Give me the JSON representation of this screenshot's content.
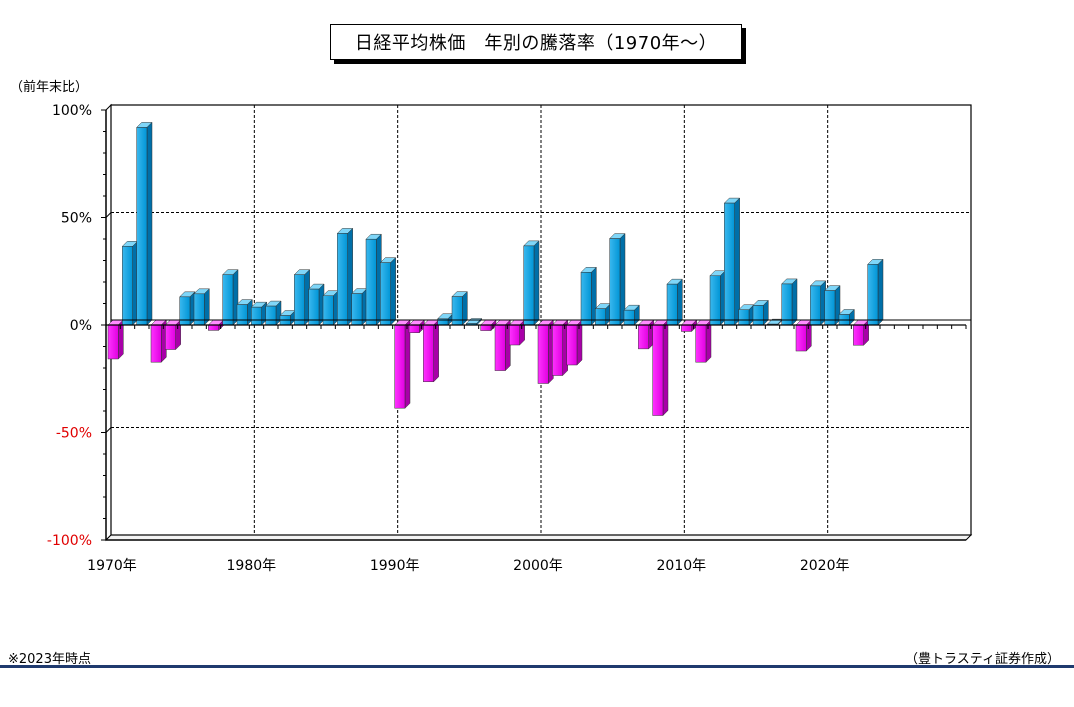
{
  "title": "日経平均株価　年別の騰落率（1970年～）",
  "unit_label": "（前年末比）",
  "footnote": "※2023年時点",
  "credit": "（豊トラスティ証券作成）",
  "colors": {
    "positive": "#00a8e6",
    "negative": "#ff00ff",
    "negative_tick": "#e00000",
    "rule": "#1f3a6e"
  },
  "chart_data": {
    "type": "bar",
    "x_tick_labels": [
      "1970年",
      "1980年",
      "1990年",
      "2000年",
      "2010年",
      "2020年"
    ],
    "y_tick_labels": [
      "100%",
      "50%",
      "0%",
      "-50%",
      "-100%"
    ],
    "ylim": [
      -100,
      100
    ],
    "xlim": [
      1970,
      2029
    ],
    "grid": true,
    "categories": [
      1970,
      1971,
      1972,
      1973,
      1974,
      1975,
      1976,
      1977,
      1978,
      1979,
      1980,
      1981,
      1982,
      1983,
      1984,
      1985,
      1986,
      1987,
      1988,
      1989,
      1990,
      1991,
      1992,
      1993,
      1994,
      1995,
      1996,
      1997,
      1998,
      1999,
      2000,
      2001,
      2002,
      2003,
      2004,
      2005,
      2006,
      2007,
      2008,
      2009,
      2010,
      2011,
      2012,
      2013,
      2014,
      2015,
      2016,
      2017,
      2018,
      2019,
      2020,
      2021,
      2022,
      2023
    ],
    "values": [
      -15.8,
      36.6,
      91.9,
      -17.3,
      -11.4,
      13.1,
      14.5,
      -2.5,
      23.4,
      9.5,
      8.3,
      8.8,
      4.4,
      23.4,
      16.7,
      13.6,
      42.6,
      14.6,
      39.9,
      29.0,
      -38.7,
      -3.6,
      -26.4,
      2.9,
      13.2,
      0.7,
      -2.6,
      -21.2,
      -9.3,
      36.8,
      -27.2,
      -23.5,
      -18.6,
      24.5,
      7.6,
      40.2,
      6.9,
      -11.1,
      -42.1,
      19.0,
      -3.0,
      -17.3,
      22.9,
      56.7,
      7.1,
      9.1,
      0.4,
      19.1,
      -12.1,
      18.2,
      16.0,
      4.9,
      -9.4,
      28.2
    ]
  }
}
